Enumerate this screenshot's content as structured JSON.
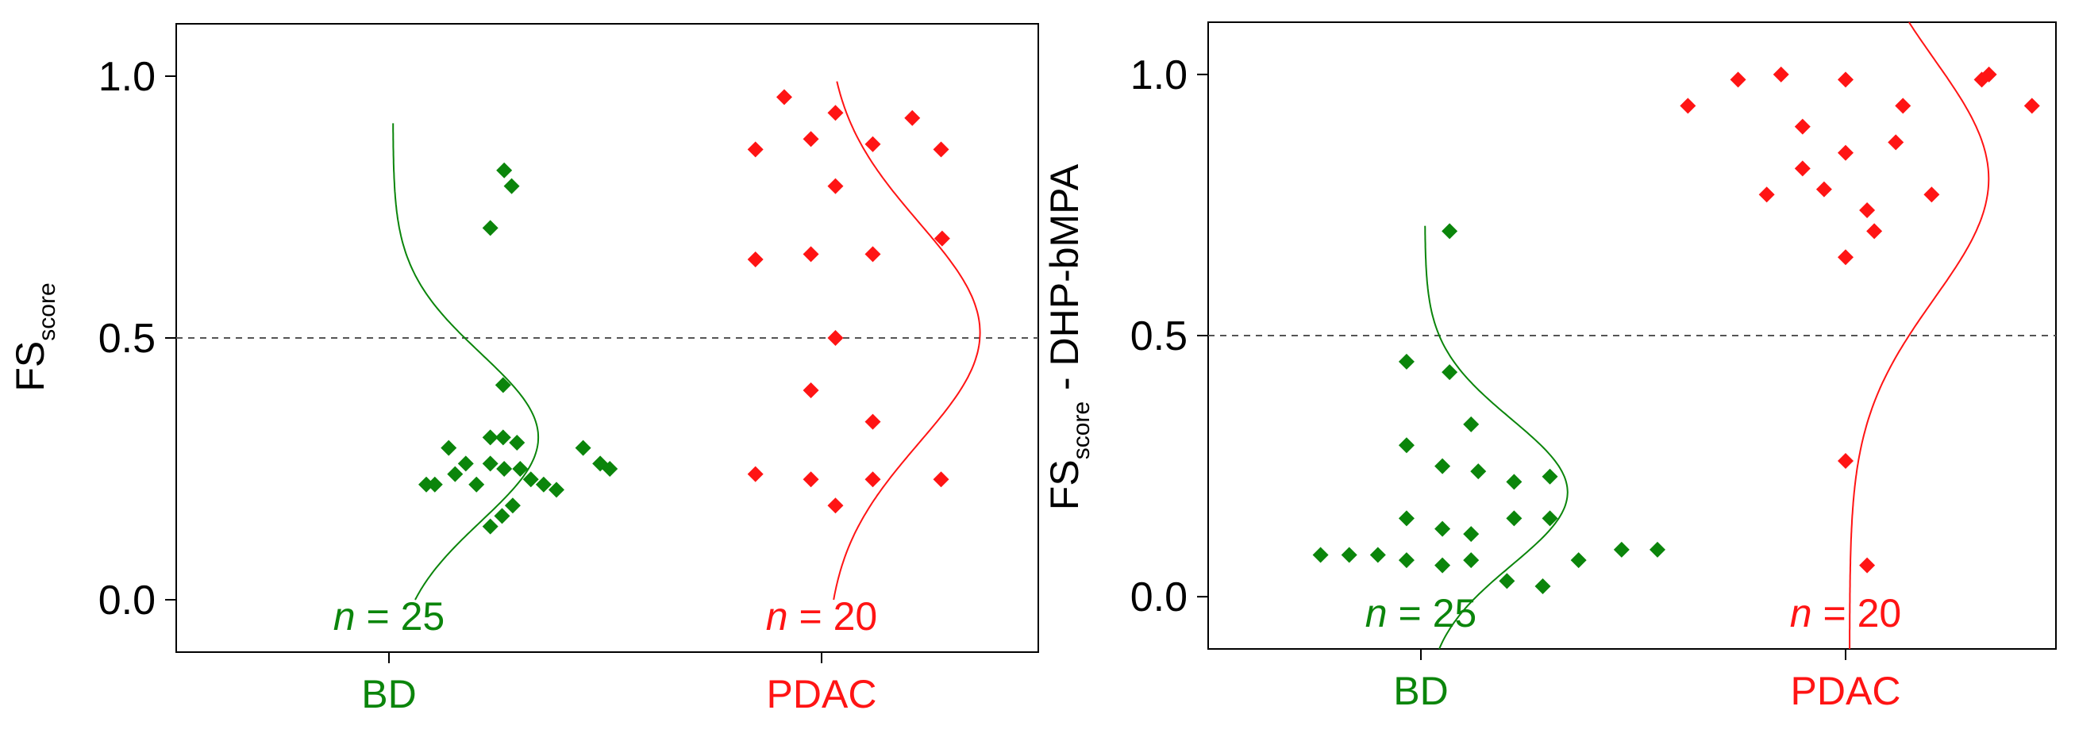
{
  "colors": {
    "BD": "#0b850b",
    "PDAC": "#ff1414",
    "axis": "#000000",
    "threshold": "#555555"
  },
  "chart_data": [
    {
      "type": "scatter",
      "title": "",
      "xlabel": "",
      "ylabel_main": "FS",
      "ylabel_sub": "score",
      "ylabel_suffix": "",
      "ylim": [
        -0.1,
        1.1
      ],
      "yticks": [
        0.0,
        0.5,
        1.0
      ],
      "ytick_labels": [
        "0.0",
        "0.5",
        "1.0"
      ],
      "threshold": 0.5,
      "categories": [
        "BD",
        "PDAC"
      ],
      "series": [
        {
          "name": "BD",
          "n_label": "25",
          "points": [
            [
              0.35,
              0.22
            ],
            [
              0.43,
              0.22
            ],
            [
              0.56,
              0.29
            ],
            [
              0.62,
              0.24
            ],
            [
              0.72,
              0.26
            ],
            [
              0.82,
              0.22
            ],
            [
              0.95,
              0.26
            ],
            [
              1.08,
              0.25
            ],
            [
              1.23,
              0.25
            ],
            [
              1.33,
              0.23
            ],
            [
              1.45,
              0.22
            ],
            [
              1.57,
              0.21
            ],
            [
              0.95,
              0.31
            ],
            [
              1.07,
              0.31
            ],
            [
              1.2,
              0.3
            ],
            [
              0.95,
              0.14
            ],
            [
              1.06,
              0.16
            ],
            [
              1.16,
              0.18
            ],
            [
              1.07,
              0.41
            ],
            [
              1.82,
              0.29
            ],
            [
              1.98,
              0.26
            ],
            [
              2.07,
              0.25
            ],
            [
              0.95,
              0.71
            ],
            [
              1.08,
              0.82
            ],
            [
              1.15,
              0.79
            ]
          ],
          "curve": {
            "mean": 0.31,
            "sd": 0.16,
            "amp": 0.8,
            "ymin": 0.0,
            "ymax": 0.91
          }
        },
        {
          "name": "PDAC",
          "n_label": "20",
          "points": [
            [
              -0.62,
              0.86
            ],
            [
              -0.35,
              0.96
            ],
            [
              -0.1,
              0.88
            ],
            [
              0.13,
              0.93
            ],
            [
              0.48,
              0.87
            ],
            [
              0.85,
              0.92
            ],
            [
              1.12,
              0.86
            ],
            [
              0.13,
              0.79
            ],
            [
              -0.62,
              0.65
            ],
            [
              -0.1,
              0.66
            ],
            [
              0.48,
              0.66
            ],
            [
              1.13,
              0.69
            ],
            [
              0.13,
              0.5
            ],
            [
              -0.1,
              0.4
            ],
            [
              0.48,
              0.34
            ],
            [
              -0.62,
              0.24
            ],
            [
              -0.1,
              0.23
            ],
            [
              0.48,
              0.23
            ],
            [
              1.12,
              0.23
            ],
            [
              0.13,
              0.18
            ]
          ],
          "curve": {
            "mean": 0.51,
            "sd": 0.21,
            "amp": 0.85,
            "ymin": 0.0,
            "ymax": 0.99
          }
        }
      ]
    },
    {
      "type": "scatter",
      "title": "",
      "xlabel": "",
      "ylabel_main": "FS",
      "ylabel_sub": "score",
      "ylabel_suffix": " - DHP-bMPA",
      "ylim": [
        -0.1,
        1.1
      ],
      "yticks": [
        0.0,
        0.5,
        1.0
      ],
      "ytick_labels": [
        "0.0",
        "0.5",
        "1.0"
      ],
      "threshold": 0.5,
      "categories": [
        "BD",
        "PDAC"
      ],
      "series": [
        {
          "name": "BD",
          "n_label": "25",
          "points": [
            [
              -0.7,
              0.08
            ],
            [
              -0.5,
              0.08
            ],
            [
              -0.3,
              0.08
            ],
            [
              -0.1,
              0.07
            ],
            [
              0.15,
              0.06
            ],
            [
              0.35,
              0.07
            ],
            [
              0.6,
              0.03
            ],
            [
              0.85,
              0.02
            ],
            [
              1.1,
              0.07
            ],
            [
              1.4,
              0.09
            ],
            [
              1.65,
              0.09
            ],
            [
              -0.1,
              0.15
            ],
            [
              0.15,
              0.13
            ],
            [
              0.35,
              0.12
            ],
            [
              0.65,
              0.15
            ],
            [
              0.9,
              0.15
            ],
            [
              -0.1,
              0.29
            ],
            [
              0.15,
              0.25
            ],
            [
              0.4,
              0.24
            ],
            [
              0.65,
              0.22
            ],
            [
              0.9,
              0.23
            ],
            [
              0.35,
              0.33
            ],
            [
              -0.1,
              0.45
            ],
            [
              0.2,
              0.43
            ],
            [
              0.2,
              0.7
            ]
          ],
          "curve": {
            "mean": 0.2,
            "sd": 0.14,
            "amp": 0.8,
            "ymin": -0.1,
            "ymax": 0.71
          }
        },
        {
          "name": "PDAC",
          "n_label": "20",
          "points": [
            [
              -1.1,
              0.94
            ],
            [
              -0.75,
              0.99
            ],
            [
              -0.45,
              1.0
            ],
            [
              0.0,
              0.99
            ],
            [
              0.4,
              0.94
            ],
            [
              0.95,
              0.99
            ],
            [
              1.0,
              1.0
            ],
            [
              1.3,
              0.94
            ],
            [
              -0.3,
              0.9
            ],
            [
              -0.3,
              0.82
            ],
            [
              0.0,
              0.85
            ],
            [
              0.35,
              0.87
            ],
            [
              -0.15,
              0.78
            ],
            [
              0.6,
              0.77
            ],
            [
              0.15,
              0.74
            ],
            [
              -0.55,
              0.77
            ],
            [
              0.2,
              0.7
            ],
            [
              0.0,
              0.65
            ],
            [
              0.0,
              0.26
            ],
            [
              0.15,
              0.06
            ]
          ],
          "curve": {
            "mean": 0.8,
            "sd": 0.23,
            "amp": 0.78,
            "ymin": -0.1,
            "ymax": 1.1
          }
        }
      ]
    }
  ]
}
